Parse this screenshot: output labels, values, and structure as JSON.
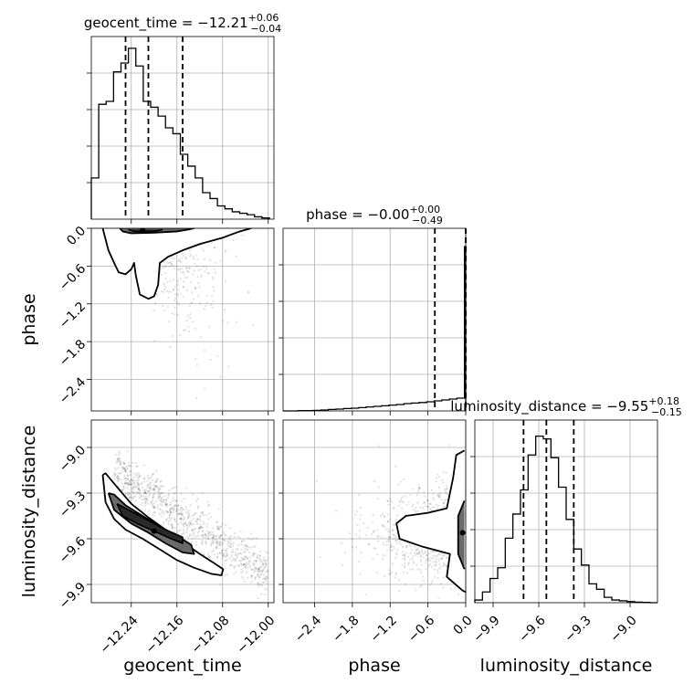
{
  "chart_data": {
    "type": "corner",
    "parameters": [
      "geocent_time",
      "phase",
      "luminosity_distance"
    ],
    "axis_labels": [
      "geocent_time",
      "phase",
      "luminosity_distance"
    ],
    "grid": true,
    "ranges": {
      "geocent_time": [
        -12.31,
        -11.99
      ],
      "phase": [
        -2.9,
        0.0
      ],
      "luminosity_distance": [
        -10.02,
        -8.82
      ]
    },
    "ticks": {
      "geocent_time": {
        "values": [
          -12.24,
          -12.16,
          -12.08,
          -12.0
        ],
        "labels": [
          "−12.24",
          "−12.16",
          "−12.08",
          "−12.00"
        ]
      },
      "phase": {
        "values": [
          -2.4,
          -1.8,
          -1.2,
          -0.6,
          0.0
        ],
        "labels": [
          "−2.4",
          "−1.8",
          "−1.2",
          "−0.6",
          "0.0"
        ]
      },
      "luminosity_distance": {
        "values": [
          -9.9,
          -9.6,
          -9.3,
          -9.0
        ],
        "labels": [
          "−9.9",
          "−9.6",
          "−9.3",
          "−9.0"
        ]
      }
    },
    "marginals": [
      {
        "param": "geocent_time",
        "title": "geocent_time = −12.21",
        "title_sup": "+0.06",
        "title_sub": "−0.04",
        "quantiles": [
          -12.25,
          -12.21,
          -12.15
        ],
        "bin_edges": [
          -12.31,
          -12.297,
          -12.284,
          -12.271,
          -12.258,
          -12.245,
          -12.232,
          -12.219,
          -12.206,
          -12.193,
          -12.18,
          -12.167,
          -12.154,
          -12.141,
          -12.128,
          -12.115,
          -12.102,
          -12.089,
          -12.076,
          -12.063,
          -12.05,
          -12.037,
          -12.024,
          -12.011,
          -11.998
        ],
        "counts": [
          0.14,
          0.39,
          0.4,
          0.5,
          0.53,
          0.58,
          0.52,
          0.4,
          0.38,
          0.35,
          0.31,
          0.29,
          0.22,
          0.18,
          0.14,
          0.09,
          0.07,
          0.045,
          0.035,
          0.025,
          0.02,
          0.015,
          0.008,
          0.004
        ],
        "ymax": 0.62
      },
      {
        "param": "phase",
        "title": "phase = −0.00",
        "title_sup": "+0.00",
        "title_sub": "−0.49",
        "quantiles": [
          -0.49,
          -0.0,
          0.0
        ],
        "bin_edges": [
          -2.9,
          -2.78,
          -2.66,
          -2.54,
          -2.42,
          -2.3,
          -2.18,
          -2.06,
          -1.94,
          -1.82,
          -1.7,
          -1.58,
          -1.46,
          -1.34,
          -1.22,
          -1.1,
          -0.98,
          -0.86,
          -0.74,
          -0.62,
          -0.5,
          -0.38,
          -0.26,
          -0.14,
          -0.02,
          0.0
        ],
        "counts": [
          0.0,
          0.0,
          0.002,
          0.002,
          0.003,
          0.005,
          0.008,
          0.01,
          0.013,
          0.015,
          0.018,
          0.022,
          0.025,
          0.028,
          0.032,
          0.035,
          0.04,
          0.043,
          0.046,
          0.05,
          0.055,
          0.06,
          0.065,
          0.07,
          0.9
        ],
        "ymax": 1.0
      },
      {
        "param": "luminosity_distance",
        "title": "luminosity_distance = −9.55",
        "title_sup": "+0.18",
        "title_sub": "−0.15",
        "quantiles": [
          -9.7,
          -9.55,
          -9.37
        ],
        "bin_edges": [
          -10.02,
          -9.97,
          -9.92,
          -9.87,
          -9.82,
          -9.77,
          -9.72,
          -9.67,
          -9.62,
          -9.57,
          -9.52,
          -9.47,
          -9.42,
          -9.37,
          -9.32,
          -9.27,
          -9.22,
          -9.17,
          -9.12,
          -9.07,
          -9.02,
          -8.97,
          -8.92,
          -8.87,
          -8.82
        ],
        "counts": [
          0.01,
          0.04,
          0.09,
          0.13,
          0.24,
          0.33,
          0.42,
          0.55,
          0.62,
          0.61,
          0.54,
          0.43,
          0.31,
          0.2,
          0.14,
          0.07,
          0.05,
          0.02,
          0.01,
          0.007,
          0.004,
          0.002,
          0.001,
          0.0
        ],
        "ymax": 0.68
      }
    ],
    "pairs": [
      {
        "x": "geocent_time",
        "y": "phase",
        "center": [
          -12.22,
          -0.03
        ],
        "contour_outer": [
          [
            -12.29,
            0.0
          ],
          [
            -12.28,
            -0.35
          ],
          [
            -12.27,
            -0.55
          ],
          [
            -12.262,
            -0.7
          ],
          [
            -12.25,
            -0.73
          ],
          [
            -12.24,
            -0.65
          ],
          [
            -12.235,
            -0.55
          ],
          [
            -12.232,
            -0.75
          ],
          [
            -12.225,
            -1.05
          ],
          [
            -12.21,
            -1.12
          ],
          [
            -12.2,
            -1.08
          ],
          [
            -12.193,
            -0.9
          ],
          [
            -12.19,
            -0.55
          ],
          [
            -12.175,
            -0.45
          ],
          [
            -12.15,
            -0.35
          ],
          [
            -12.12,
            -0.25
          ],
          [
            -12.08,
            -0.15
          ],
          [
            -12.05,
            -0.05
          ],
          [
            -12.03,
            0.0
          ]
        ],
        "contour_mid": [
          [
            -12.26,
            0.0
          ],
          [
            -12.255,
            -0.05
          ],
          [
            -12.24,
            -0.08
          ],
          [
            -12.2,
            -0.07
          ],
          [
            -12.16,
            -0.05
          ],
          [
            -12.14,
            -0.02
          ],
          [
            -12.13,
            0.0
          ]
        ],
        "contour_inner": [
          [
            -12.245,
            -0.02
          ],
          [
            -12.235,
            -0.05
          ],
          [
            -12.2,
            -0.05
          ],
          [
            -12.185,
            -0.02
          ]
        ]
      },
      {
        "x": "geocent_time",
        "y": "luminosity_distance",
        "center": [
          -12.2,
          -9.55
        ],
        "contour_outer": [
          [
            -12.29,
            -9.18
          ],
          [
            -12.285,
            -9.36
          ],
          [
            -12.27,
            -9.47
          ],
          [
            -12.25,
            -9.54
          ],
          [
            -12.22,
            -9.6
          ],
          [
            -12.19,
            -9.67
          ],
          [
            -12.16,
            -9.74
          ],
          [
            -12.13,
            -9.79
          ],
          [
            -12.1,
            -9.83
          ],
          [
            -12.082,
            -9.84
          ],
          [
            -12.079,
            -9.8
          ],
          [
            -12.095,
            -9.76
          ],
          [
            -12.12,
            -9.7
          ],
          [
            -12.15,
            -9.62
          ],
          [
            -12.18,
            -9.54
          ],
          [
            -12.21,
            -9.46
          ],
          [
            -12.24,
            -9.37
          ],
          [
            -12.265,
            -9.26
          ],
          [
            -12.285,
            -9.17
          ],
          [
            -12.29,
            -9.18
          ]
        ],
        "contour_mid": [
          [
            -12.28,
            -9.3
          ],
          [
            -12.27,
            -9.41
          ],
          [
            -12.24,
            -9.5
          ],
          [
            -12.21,
            -9.56
          ],
          [
            -12.18,
            -9.63
          ],
          [
            -12.15,
            -9.69
          ],
          [
            -12.13,
            -9.7
          ],
          [
            -12.135,
            -9.64
          ],
          [
            -12.16,
            -9.58
          ],
          [
            -12.19,
            -9.52
          ],
          [
            -12.22,
            -9.45
          ],
          [
            -12.25,
            -9.38
          ],
          [
            -12.27,
            -9.31
          ],
          [
            -12.28,
            -9.3
          ]
        ],
        "contour_inner": [
          [
            -12.265,
            -9.37
          ],
          [
            -12.255,
            -9.45
          ],
          [
            -12.23,
            -9.5
          ],
          [
            -12.2,
            -9.55
          ],
          [
            -12.17,
            -9.6
          ],
          [
            -12.15,
            -9.63
          ],
          [
            -12.15,
            -9.59
          ],
          [
            -12.18,
            -9.54
          ],
          [
            -12.21,
            -9.48
          ],
          [
            -12.24,
            -9.42
          ],
          [
            -12.265,
            -9.37
          ]
        ]
      },
      {
        "x": "phase",
        "y": "luminosity_distance",
        "center": [
          -0.05,
          -9.56
        ],
        "contour_outer": [
          [
            -0.02,
            -9.02
          ],
          [
            -0.15,
            -9.05
          ],
          [
            -0.2,
            -9.2
          ],
          [
            -0.3,
            -9.4
          ],
          [
            -0.6,
            -9.43
          ],
          [
            -0.95,
            -9.45
          ],
          [
            -1.1,
            -9.5
          ],
          [
            -1.05,
            -9.6
          ],
          [
            -0.7,
            -9.65
          ],
          [
            -0.25,
            -9.7
          ],
          [
            -0.3,
            -9.85
          ],
          [
            -0.05,
            -9.94
          ],
          [
            0.0,
            -9.95
          ]
        ],
        "contour_mid": [
          [
            -0.02,
            -9.35
          ],
          [
            -0.12,
            -9.45
          ],
          [
            -0.12,
            -9.7
          ],
          [
            -0.02,
            -9.8
          ]
        ]
      }
    ]
  }
}
